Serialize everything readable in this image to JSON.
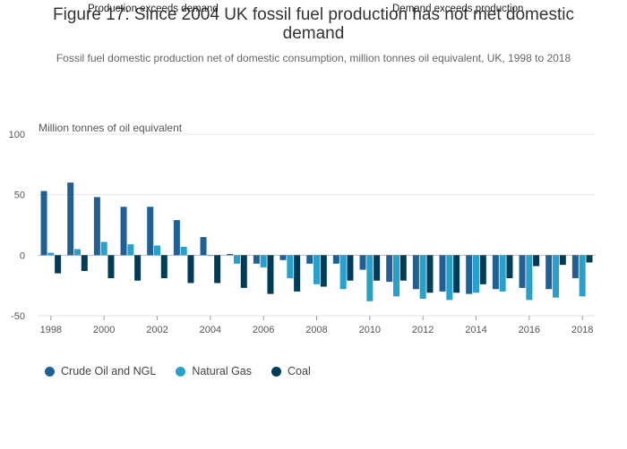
{
  "title": "Figure 17: Since 2004 UK fossil fuel production has not met domestic demand",
  "subtitle": "Fossil fuel domestic production net of domestic consumption, million tonnes oil equivalent, UK, 1998 to 2018",
  "annotations": {
    "left": "Production exceeds demand",
    "right": "Demand exceeds production"
  },
  "colors": {
    "crude": "#206095",
    "gas": "#27a0cc",
    "coal": "#003c57",
    "grid": "#e6e6e6",
    "zero": "#bbbbbb"
  },
  "chart_data": {
    "type": "bar",
    "title": "Figure 17: Since 2004 UK fossil fuel production has not met domestic demand",
    "ylabel": "Million tonnes of oil equivalent",
    "xlabel": "",
    "ylim": [
      -50,
      100
    ],
    "yticks": [
      -50,
      0,
      50,
      100
    ],
    "categories": [
      "1998",
      "1999",
      "2000",
      "2001",
      "2002",
      "2003",
      "2004",
      "2005",
      "2006",
      "2007",
      "2008",
      "2009",
      "2010",
      "2011",
      "2012",
      "2013",
      "2014",
      "2015",
      "2016",
      "2017",
      "2018"
    ],
    "xtick_labels": [
      "1998",
      "2000",
      "2002",
      "2004",
      "2006",
      "2008",
      "2010",
      "2012",
      "2014",
      "2016",
      "2018"
    ],
    "series": [
      {
        "name": "Crude Oil and NGL",
        "color": "#206095",
        "values": [
          53,
          60,
          48,
          40,
          40,
          29,
          15,
          1,
          -7,
          -4,
          -7,
          -7,
          -12,
          -22,
          -28,
          -30,
          -32,
          -28,
          -27,
          -28,
          -19
        ]
      },
      {
        "name": "Natural Gas",
        "color": "#27a0cc",
        "values": [
          2,
          5,
          11,
          9,
          8,
          7,
          0,
          -7,
          -10,
          -19,
          -24,
          -28,
          -38,
          -34,
          -36,
          -37,
          -31,
          -30,
          -37,
          -35,
          -34
        ]
      },
      {
        "name": "Coal",
        "color": "#003c57",
        "values": [
          -15,
          -13,
          -19,
          -21,
          -19,
          -23,
          -23,
          -27,
          -32,
          -30,
          -26,
          -21,
          -21,
          -21,
          -31,
          -31,
          -24,
          -19,
          -9,
          -8,
          -6
        ]
      }
    ],
    "legend_position": "bottom-left",
    "grid": true
  }
}
